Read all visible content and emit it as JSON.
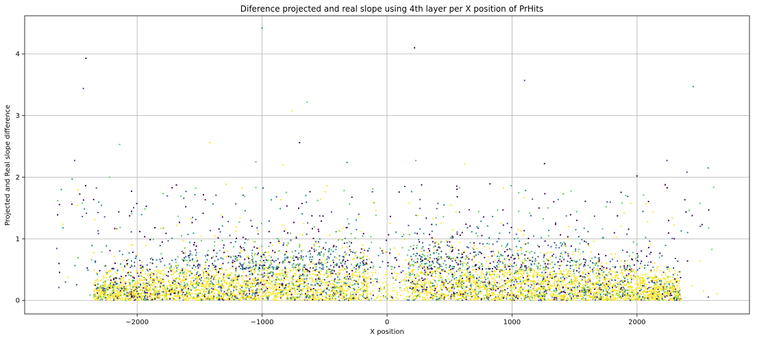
{
  "chart_data": {
    "type": "scatter",
    "title": "Diference projected and real slope using 4th layer per X position of PrHits",
    "xlabel": "X position",
    "ylabel": "Projected and Real slope difference",
    "xlim": [
      -2900,
      2900
    ],
    "ylim": [
      -0.22,
      4.62
    ],
    "xticks": [
      -2000,
      -1000,
      0,
      1000,
      2000
    ],
    "xtick_labels": [
      "−2000",
      "−1000",
      "0",
      "1000",
      "2000"
    ],
    "yticks": [
      0,
      1,
      2,
      3,
      4
    ],
    "ytick_labels": [
      "0",
      "1",
      "2",
      "3",
      "4"
    ],
    "grid": true,
    "colormap": [
      "#440154",
      "#3b528b",
      "#21918c",
      "#5ec962",
      "#fde725"
    ],
    "density_description": "dense band y 0-1 across x -2300..2300, gap near x -150..170",
    "outliers": [
      {
        "x": -2410,
        "y": 3.93
      },
      {
        "x": -2430,
        "y": 3.44
      },
      {
        "x": -1000,
        "y": 4.42
      },
      {
        "x": -640,
        "y": 3.22
      },
      {
        "x": -760,
        "y": 3.08
      },
      {
        "x": 220,
        "y": 4.1
      },
      {
        "x": 1100,
        "y": 3.57
      },
      {
        "x": 2450,
        "y": 3.47
      },
      {
        "x": -2140,
        "y": 2.53
      },
      {
        "x": -1420,
        "y": 2.56
      },
      {
        "x": -700,
        "y": 2.56
      },
      {
        "x": -2500,
        "y": 2.27
      },
      {
        "x": -320,
        "y": 2.24
      },
      {
        "x": 230,
        "y": 2.27
      },
      {
        "x": 620,
        "y": 2.22
      },
      {
        "x": 1260,
        "y": 2.22
      },
      {
        "x": 2240,
        "y": 2.27
      },
      {
        "x": 2570,
        "y": 2.15
      },
      {
        "x": -1050,
        "y": 2.25
      },
      {
        "x": -830,
        "y": 2.2
      },
      {
        "x": 2000,
        "y": 2.02
      },
      {
        "x": 2400,
        "y": 2.08
      },
      {
        "x": -2520,
        "y": 1.97
      },
      {
        "x": -2220,
        "y": 2.0
      }
    ]
  }
}
